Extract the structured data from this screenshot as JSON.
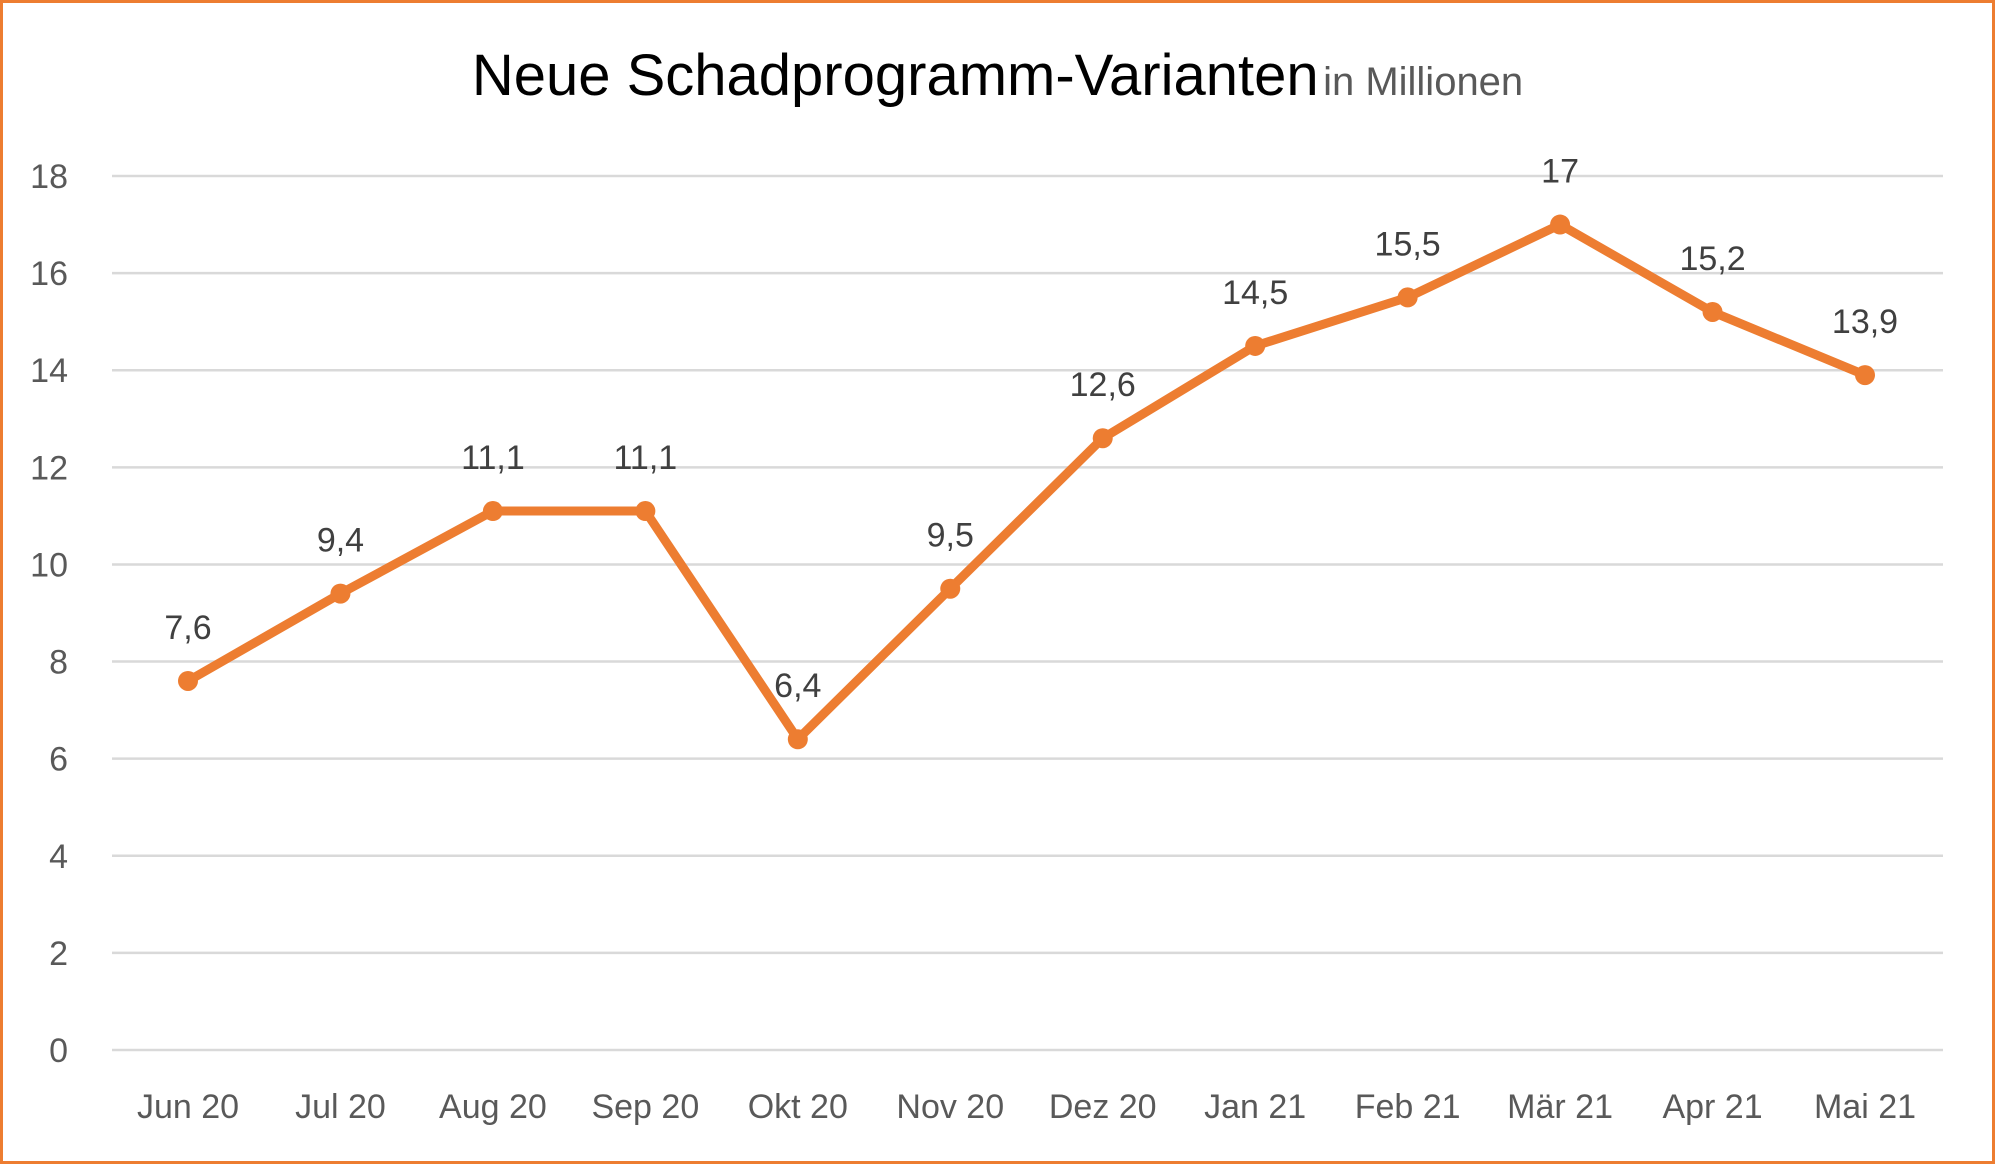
{
  "chart_data": {
    "type": "line",
    "title": "Neue Schadprogramm-Varianten",
    "subtitle": "in Millionen",
    "xlabel": "",
    "ylabel": "",
    "categories": [
      "Jun 20",
      "Jul 20",
      "Aug 20",
      "Sep 20",
      "Okt 20",
      "Nov 20",
      "Dez 20",
      "Jan 21",
      "Feb 21",
      "Mär 21",
      "Apr 21",
      "Mai 21"
    ],
    "series": [
      {
        "name": "Neue Schadprogramm-Varianten",
        "values": [
          7.6,
          9.4,
          11.1,
          11.1,
          6.4,
          9.5,
          12.6,
          14.5,
          15.5,
          17,
          15.2,
          13.9
        ],
        "labels": [
          "7,6",
          "9,4",
          "11,1",
          "11,1",
          "6,4",
          "9,5",
          "12,6",
          "14,5",
          "15,5",
          "17",
          "15,2",
          "13,9"
        ],
        "color": "#ED7D31"
      }
    ],
    "ylim": [
      0,
      18
    ],
    "yticks": [
      0,
      2,
      4,
      6,
      8,
      10,
      12,
      14,
      16,
      18
    ],
    "grid": true,
    "legend": "none",
    "colors": {
      "line": "#ED7D31",
      "grid": "#D9D9D9",
      "border": "#ED7D31"
    }
  }
}
